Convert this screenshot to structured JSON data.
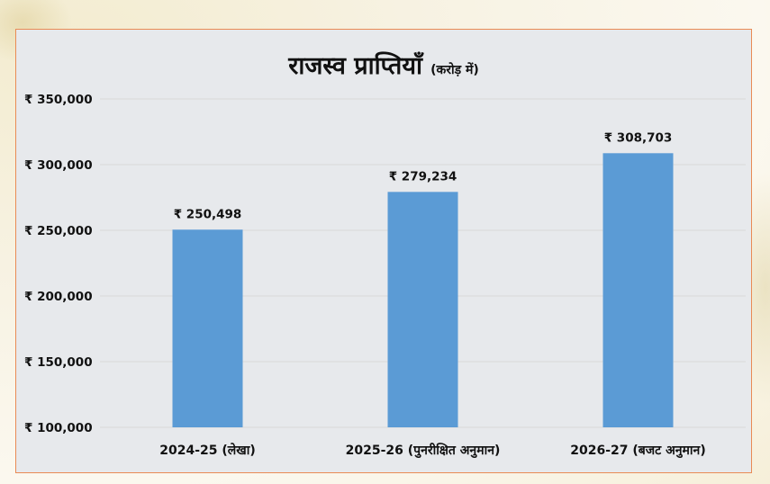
{
  "chart_data": {
    "type": "bar",
    "title": "राजस्व प्राप्तियाँ",
    "subtitle": "(करोड़ में)",
    "categories": [
      "2024-25 (लेखा)",
      "2025-26 (पुनरीक्षित अनुमान)",
      "2026-27 (बजट अनुमान)"
    ],
    "values": [
      250498,
      279234,
      308703
    ],
    "data_labels": [
      "₹ 250,498",
      "₹ 279,234",
      "₹ 308,703"
    ],
    "yticks": [
      100000,
      150000,
      200000,
      250000,
      300000,
      350000
    ],
    "ytick_labels": [
      "₹ 100,000",
      "₹ 150,000",
      "₹ 200,000",
      "₹ 250,000",
      "₹ 300,000",
      "₹ 350,000"
    ],
    "ylim": [
      100000,
      350000
    ],
    "xlabel": "",
    "ylabel": "",
    "grid": true,
    "bar_color": "#5b9bd5",
    "grid_color": "#d9d9d9"
  }
}
